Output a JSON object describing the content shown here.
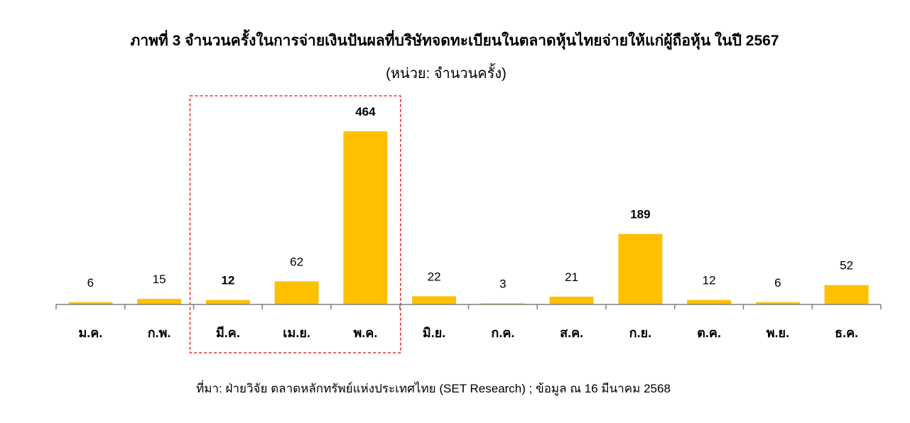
{
  "chart_data": {
    "type": "bar",
    "title": "ภาพที่ 3 จำนวนครั้งในการจ่ายเงินปันผลที่บริษัทจดทะเบียนในตลาดหุ้นไทยจ่ายให้แก่ผู้ถือหุ้น ในปี 2567",
    "subtitle": "(หน่วย:  จำนวนครั้ง)",
    "categories": [
      "ม.ค.",
      "ก.พ.",
      "มี.ค.",
      "เม.ย.",
      "พ.ค.",
      "มิ.ย.",
      "ก.ค.",
      "ส.ค.",
      "ก.ย.",
      "ต.ค.",
      "พ.ย.",
      "ธ.ค."
    ],
    "values": [
      6,
      15,
      12,
      62,
      464,
      22,
      3,
      21,
      189,
      12,
      6,
      52
    ],
    "bold_labels": [
      false,
      false,
      true,
      false,
      true,
      false,
      false,
      false,
      true,
      false,
      false,
      false
    ],
    "highlight_categories": [
      "มี.ค.",
      "เม.ย.",
      "พ.ค."
    ],
    "ylim": [
      0,
      500
    ],
    "grid": false,
    "legend": "none",
    "xlabel": "",
    "ylabel": "",
    "colors": {
      "bar": "#FFC000",
      "highlight_box": "#E60000",
      "axis": "#808080"
    },
    "source": "ที่มา: ฝ่ายวิจัย ตลาดหลักทรัพย์แห่งประเทศไทย (SET Research) ; ข้อมูล ณ 16 มีนาคม 2568"
  }
}
